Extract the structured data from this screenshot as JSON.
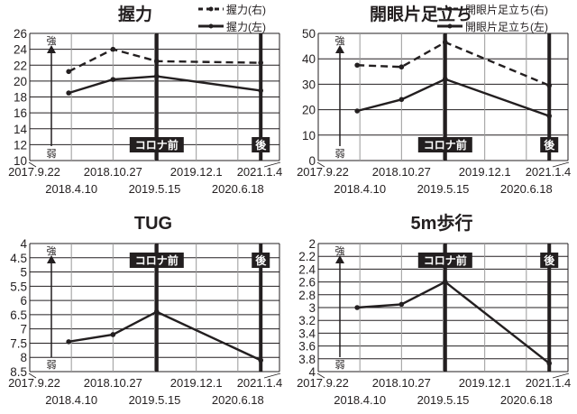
{
  "markers": {
    "before": "コロナ前",
    "after": "後",
    "strong": "強",
    "weak": "弱"
  },
  "x_ticks": [
    "2017.9.22",
    "2018.4.10",
    "2018.10.27",
    "2019.5.15",
    "2019.12.1",
    "2020.6.18",
    "2021.1.4"
  ],
  "chart_data": [
    {
      "type": "line",
      "title": "握力",
      "ylim": [
        10,
        26
      ],
      "y_step": 2,
      "y_reversed": false,
      "y_ticks": [
        "10",
        "12",
        "14",
        "16",
        "18",
        "20",
        "22",
        "24",
        "26"
      ],
      "x_index": [
        1,
        2,
        3.05,
        5.55
      ],
      "marker_index": {
        "before": 3.05,
        "after": 5.55
      },
      "legend_position": "top-right",
      "series": [
        {
          "name": "握力(右)",
          "style": "dashed",
          "values": [
            21.2,
            24.0,
            22.5,
            22.3
          ]
        },
        {
          "name": "握力(左)",
          "style": "solid",
          "values": [
            18.5,
            20.2,
            20.6,
            18.8
          ]
        }
      ]
    },
    {
      "type": "line",
      "title": "開眼片足立ち",
      "ylim": [
        0,
        50
      ],
      "y_step": 10,
      "y_reversed": false,
      "y_ticks": [
        "0",
        "10",
        "20",
        "30",
        "40",
        "50"
      ],
      "x_index": [
        1,
        2,
        3.05,
        5.55
      ],
      "marker_index": {
        "before": 3.05,
        "after": 5.55
      },
      "legend_position": "top-right",
      "series": [
        {
          "name": "開眼片足立ち(右)",
          "style": "dashed",
          "values": [
            37.5,
            36.8,
            46.5,
            29.5
          ]
        },
        {
          "name": "開眼片足立ち(左)",
          "style": "solid",
          "values": [
            19.5,
            24.0,
            32.0,
            17.5
          ]
        }
      ]
    },
    {
      "type": "line",
      "title": "TUG",
      "ylim": [
        4,
        8.5
      ],
      "y_step": 0.5,
      "y_reversed": true,
      "y_ticks": [
        "4",
        "4.5",
        "5",
        "5.5",
        "6",
        "6.5",
        "7",
        "7.5",
        "8",
        "8.5"
      ],
      "x_index": [
        1,
        2,
        3.05,
        5.55
      ],
      "marker_index": {
        "before": 3.05,
        "after": 5.55
      },
      "series": [
        {
          "name": "TUG",
          "style": "solid",
          "values": [
            7.45,
            7.2,
            6.4,
            8.1
          ]
        }
      ]
    },
    {
      "type": "line",
      "title": "5m歩行",
      "ylim": [
        2,
        4
      ],
      "y_step": 0.2,
      "y_reversed": true,
      "y_ticks": [
        "2",
        "2.2",
        "2.4",
        "2.6",
        "2.8",
        "3",
        "3.2",
        "3.4",
        "3.6",
        "3.8",
        "4"
      ],
      "x_index": [
        1,
        2,
        3.05,
        5.55
      ],
      "marker_index": {
        "before": 3.05,
        "after": 5.55
      },
      "series": [
        {
          "name": "5m歩行",
          "style": "solid",
          "values": [
            3.0,
            2.95,
            2.6,
            3.87
          ]
        }
      ]
    }
  ]
}
